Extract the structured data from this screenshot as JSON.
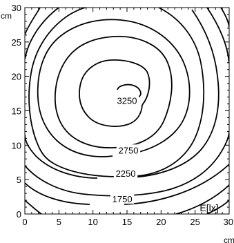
{
  "chart_data": {
    "type": "contour",
    "title": "",
    "xlabel": "",
    "ylabel": "",
    "x_unit": "cm",
    "y_unit": "cm",
    "xlim": [
      0,
      30
    ],
    "ylim": [
      0,
      30
    ],
    "x_ticks": [
      "0",
      "5",
      "10",
      "15",
      "20",
      "25",
      "30"
    ],
    "y_ticks": [
      "0",
      "5",
      "10",
      "15",
      "20",
      "25",
      "30"
    ],
    "quantity_label": "E[lx]",
    "peak": {
      "x": 14.8,
      "y": 18.2
    },
    "contour_labels": [
      {
        "text": "3250",
        "x": 15.0,
        "y": 16.5
      },
      {
        "text": "2750",
        "x": 15.2,
        "y": 9.3
      },
      {
        "text": "2250",
        "x": 14.8,
        "y": 5.9
      },
      {
        "text": "1750",
        "x": 14.3,
        "y": 2.2
      }
    ]
  }
}
